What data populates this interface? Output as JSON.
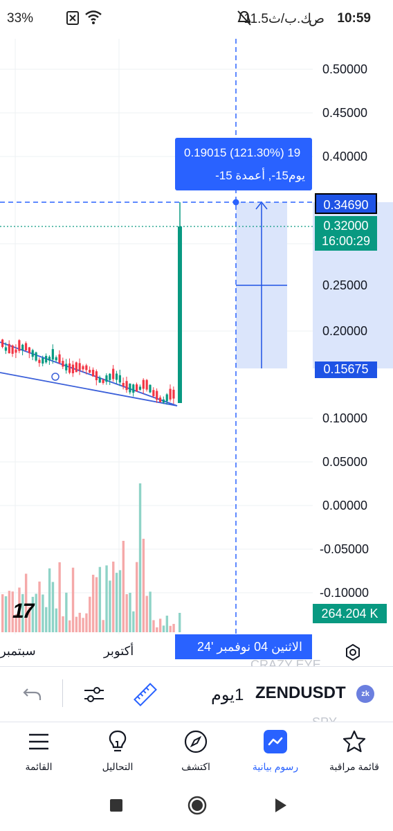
{
  "status_bar": {
    "time": "10:59",
    "ampm": "ص",
    "speed": "11.5ك.ب/ث",
    "battery": "33%",
    "icons": [
      "bell-off-icon",
      "no-sim-icon",
      "wifi-icon",
      "battery-icon"
    ]
  },
  "chart": {
    "symbol": "ZENDUSDT",
    "interval": "1يوم",
    "y_axis_labels": [
      "0.50000",
      "0.45000",
      "0.40000",
      "0.25000",
      "0.20000",
      "0.10000",
      "0.05000",
      "0.00000",
      "-0.05000",
      "-0.10000"
    ],
    "crosshair_price": "0.34690",
    "last_price": "0.32000",
    "countdown": "16:00:29",
    "range_low_price": "0.15675",
    "volume_label": "264.204 K",
    "measure_line1": "0.19015 (121.30%) 19",
    "measure_line2": "يوم15-, أعمدة 15-",
    "crosshair_date": "الاثنين 04 نوفمبر '24",
    "x_axis_labels": [
      "سبتمبر",
      "أكتوبر"
    ],
    "logo_text": "17",
    "ghost_text_1": "CRAZY EYE",
    "ghost_text_2": "SPY",
    "colors": {
      "up": "#089981",
      "down": "#f23645",
      "accent": "#2962ff"
    }
  },
  "toolbar": {
    "undo_icon": "undo-icon",
    "settings_icon": "sliders-icon",
    "ruler_icon": "ruler-icon",
    "symbol_logo": "zk"
  },
  "bottom_nav": [
    {
      "label": "قائمة مراقبة",
      "icon": "star-icon"
    },
    {
      "label": "رسوم بيانية",
      "icon": "chart-icon"
    },
    {
      "label": "اكتشف",
      "icon": "compass-icon"
    },
    {
      "label": "التحاليل",
      "icon": "lightbulb-icon"
    },
    {
      "label": "القائمة",
      "icon": "menu-icon"
    }
  ]
}
